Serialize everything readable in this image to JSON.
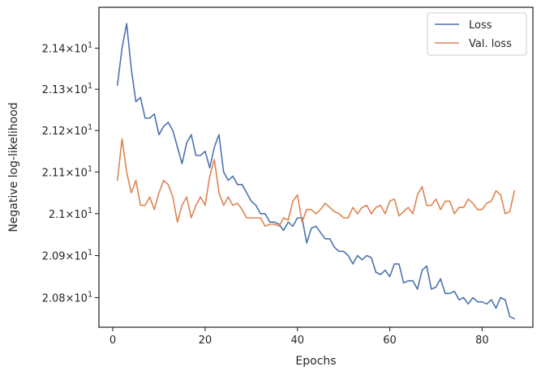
{
  "chart_data": {
    "type": "line",
    "xlabel": "Epochs",
    "ylabel": "Negative log-likelihood",
    "xlim": [
      -3,
      91
    ],
    "ylim": [
      20.73,
      21.5
    ],
    "yscale": "log",
    "grid": false,
    "legend_position": "top-right",
    "x_ticks": [
      0,
      20,
      40,
      60,
      80
    ],
    "x_tick_labels": [
      "0",
      "20",
      "40",
      "60",
      "80"
    ],
    "y_ticks": [
      {
        "value": 20.8,
        "mant": "2.08",
        "exp": "1"
      },
      {
        "value": 20.9,
        "mant": "2.09",
        "exp": "1"
      },
      {
        "value": 21.0,
        "mant": "2.1",
        "exp": "1"
      },
      {
        "value": 21.1,
        "mant": "2.11",
        "exp": "1"
      },
      {
        "value": 21.2,
        "mant": "2.12",
        "exp": "1"
      },
      {
        "value": 21.3,
        "mant": "2.13",
        "exp": "1"
      },
      {
        "value": 21.4,
        "mant": "2.14",
        "exp": "1"
      }
    ],
    "x": [
      1,
      2,
      3,
      4,
      5,
      6,
      7,
      8,
      9,
      10,
      11,
      12,
      13,
      14,
      15,
      16,
      17,
      18,
      19,
      20,
      21,
      22,
      23,
      24,
      25,
      26,
      27,
      28,
      29,
      30,
      31,
      32,
      33,
      34,
      35,
      36,
      37,
      38,
      39,
      40,
      41,
      42,
      43,
      44,
      45,
      46,
      47,
      48,
      49,
      50,
      51,
      52,
      53,
      54,
      55,
      56,
      57,
      58,
      59,
      60,
      61,
      62,
      63,
      64,
      65,
      66,
      67,
      68,
      69,
      70,
      71,
      72,
      73,
      74,
      75,
      76,
      77,
      78,
      79,
      80,
      81,
      82,
      83,
      84,
      85,
      86,
      87
    ],
    "series": [
      {
        "name": "Loss",
        "color": "#4c72b0",
        "values": [
          21.31,
          21.4,
          21.46,
          21.35,
          21.27,
          21.28,
          21.23,
          21.23,
          21.24,
          21.19,
          21.21,
          21.22,
          21.2,
          21.16,
          21.12,
          21.17,
          21.19,
          21.14,
          21.14,
          21.15,
          21.11,
          21.16,
          21.19,
          21.1,
          21.08,
          21.09,
          21.07,
          21.07,
          21.05,
          21.03,
          21.02,
          21.0,
          21.0,
          20.98,
          20.98,
          20.975,
          20.96,
          20.98,
          20.97,
          20.99,
          20.99,
          20.93,
          20.965,
          20.97,
          20.955,
          20.94,
          20.94,
          20.92,
          20.91,
          20.91,
          20.9,
          20.88,
          20.9,
          20.89,
          20.9,
          20.895,
          20.86,
          20.855,
          20.865,
          20.85,
          20.88,
          20.88,
          20.835,
          20.84,
          20.84,
          20.82,
          20.865,
          20.875,
          20.82,
          20.825,
          20.845,
          20.81,
          20.81,
          20.815,
          20.795,
          20.8,
          20.785,
          20.8,
          20.79,
          20.79,
          20.785,
          20.795,
          20.775,
          20.8,
          20.795,
          20.755,
          20.75
        ]
      },
      {
        "name": "Val. loss",
        "color": "#dd8452",
        "values": [
          21.08,
          21.18,
          21.1,
          21.05,
          21.08,
          21.02,
          21.02,
          21.04,
          21.01,
          21.05,
          21.08,
          21.07,
          21.04,
          20.98,
          21.02,
          21.04,
          20.99,
          21.02,
          21.04,
          21.02,
          21.09,
          21.13,
          21.05,
          21.02,
          21.04,
          21.02,
          21.025,
          21.01,
          20.99,
          20.99,
          20.99,
          20.99,
          20.97,
          20.975,
          20.975,
          20.97,
          20.99,
          20.985,
          21.03,
          21.045,
          20.98,
          21.01,
          21.01,
          21.0,
          21.01,
          21.025,
          21.015,
          21.005,
          21.0,
          20.99,
          20.99,
          21.015,
          21.0,
          21.015,
          21.02,
          21.0,
          21.015,
          21.02,
          21.0,
          21.03,
          21.035,
          20.995,
          21.005,
          21.015,
          21.0,
          21.045,
          21.065,
          21.02,
          21.02,
          21.035,
          21.01,
          21.03,
          21.03,
          21.0,
          21.015,
          21.015,
          21.035,
          21.025,
          21.01,
          21.01,
          21.025,
          21.03,
          21.055,
          21.045,
          21.0,
          21.005,
          21.055
        ]
      }
    ]
  }
}
